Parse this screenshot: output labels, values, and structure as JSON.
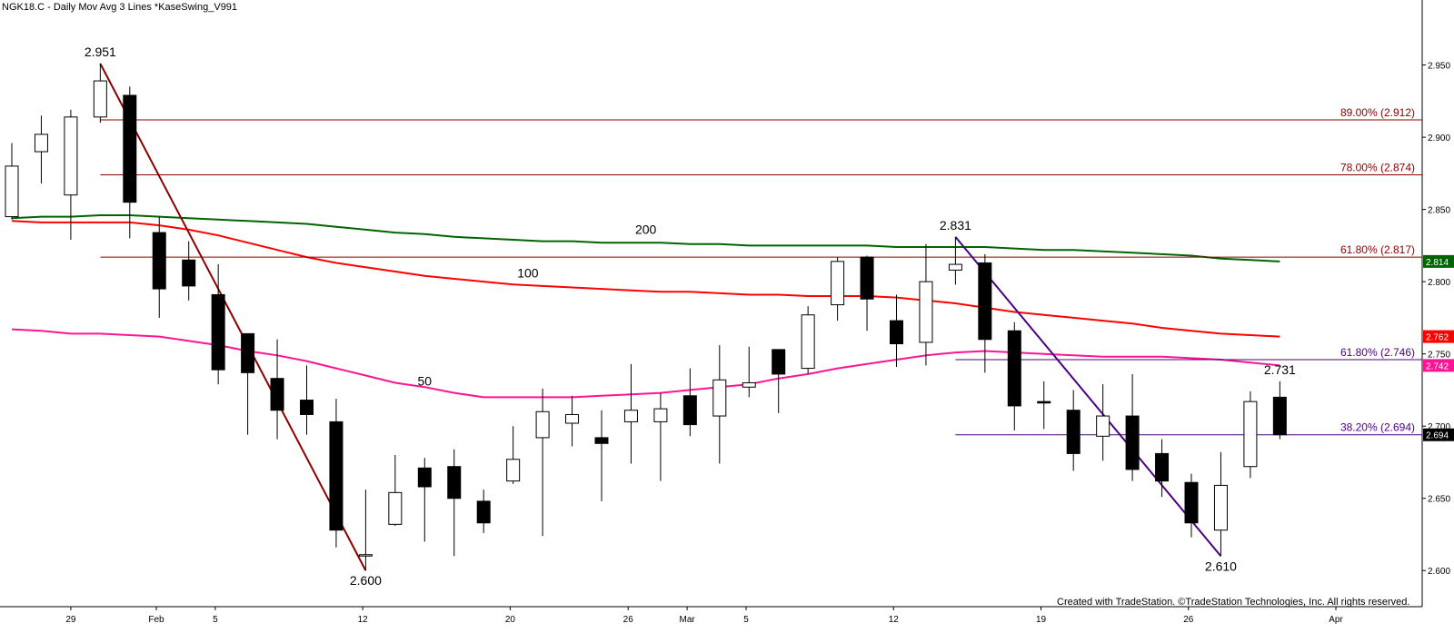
{
  "header": {
    "title": "NGK18.C - Daily  Mov Avg 3 Lines  *KaseSwing_V991"
  },
  "copyright": "Created with TradeStation. ©TradeStation Technologies, Inc. All rights reserved.",
  "colors": {
    "up_candle": "#ffffff",
    "down_candle": "#000000",
    "ma200": "#006400",
    "ma100": "#ff0000",
    "ma50": "#ff1493",
    "fib_upper": "#8b0000",
    "fib_lower": "#4b0082",
    "swing_down1": "#8b0000",
    "swing_down2": "#4b0082"
  },
  "chart_data": {
    "type": "candlestick",
    "x_tick_labels": [
      "29",
      "Feb",
      "5",
      "12",
      "20",
      "26",
      "Mar",
      "5",
      "12",
      "19",
      "26",
      "Apr"
    ],
    "y_ticks": [
      2.6,
      2.65,
      2.7,
      2.75,
      2.8,
      2.85,
      2.9,
      2.95
    ],
    "y_tick_labels": [
      "2.600",
      "2.650",
      "2.700",
      "2.750",
      "2.800",
      "2.850",
      "2.900",
      "2.950"
    ],
    "ylim": [
      2.575,
      2.995
    ],
    "candles": [
      {
        "date": "Jan 26",
        "open": 2.845,
        "high": 2.896,
        "low": 2.843,
        "close": 2.88
      },
      {
        "date": "Jan 29",
        "open": 2.89,
        "high": 2.915,
        "low": 2.868,
        "close": 2.902
      },
      {
        "date": "Jan 30",
        "open": 2.86,
        "high": 2.919,
        "low": 2.829,
        "close": 2.914
      },
      {
        "date": "Jan 31",
        "open": 2.914,
        "high": 2.951,
        "low": 2.91,
        "close": 2.939
      },
      {
        "date": "Feb 1",
        "open": 2.929,
        "high": 2.935,
        "low": 2.83,
        "close": 2.855
      },
      {
        "date": "Feb 2",
        "open": 2.834,
        "high": 2.845,
        "low": 2.775,
        "close": 2.795
      },
      {
        "date": "Feb 5",
        "open": 2.815,
        "high": 2.828,
        "low": 2.787,
        "close": 2.797
      },
      {
        "date": "Feb 6",
        "open": 2.791,
        "high": 2.812,
        "low": 2.729,
        "close": 2.739
      },
      {
        "date": "Feb 7",
        "open": 2.764,
        "high": 2.76,
        "low": 2.694,
        "close": 2.737
      },
      {
        "date": "Feb 8",
        "open": 2.733,
        "high": 2.76,
        "low": 2.691,
        "close": 2.711
      },
      {
        "date": "Feb 9",
        "open": 2.718,
        "high": 2.742,
        "low": 2.694,
        "close": 2.708
      },
      {
        "date": "Feb 12",
        "open": 2.703,
        "high": 2.719,
        "low": 2.616,
        "close": 2.628
      },
      {
        "date": "Feb 13",
        "open": 2.611,
        "high": 2.656,
        "low": 2.6,
        "close": 2.611
      },
      {
        "date": "Feb 14",
        "open": 2.632,
        "high": 2.68,
        "low": 2.631,
        "close": 2.654
      },
      {
        "date": "Feb 15",
        "open": 2.671,
        "high": 2.678,
        "low": 2.62,
        "close": 2.658
      },
      {
        "date": "Feb 16",
        "open": 2.672,
        "high": 2.684,
        "low": 2.61,
        "close": 2.65
      },
      {
        "date": "Feb 20",
        "open": 2.648,
        "high": 2.656,
        "low": 2.626,
        "close": 2.633
      },
      {
        "date": "Feb 21",
        "open": 2.662,
        "high": 2.7,
        "low": 2.66,
        "close": 2.677
      },
      {
        "date": "Feb 22",
        "open": 2.692,
        "high": 2.726,
        "low": 2.624,
        "close": 2.71
      },
      {
        "date": "Feb 23",
        "open": 2.702,
        "high": 2.721,
        "low": 2.686,
        "close": 2.708
      },
      {
        "date": "Feb 26",
        "open": 2.692,
        "high": 2.711,
        "low": 2.648,
        "close": 2.688
      },
      {
        "date": "Feb 27",
        "open": 2.703,
        "high": 2.743,
        "low": 2.674,
        "close": 2.711
      },
      {
        "date": "Feb 28",
        "open": 2.703,
        "high": 2.723,
        "low": 2.662,
        "close": 2.712
      },
      {
        "date": "Mar 1",
        "open": 2.721,
        "high": 2.74,
        "low": 2.693,
        "close": 2.701
      },
      {
        "date": "Mar 2",
        "open": 2.707,
        "high": 2.756,
        "low": 2.674,
        "close": 2.732
      },
      {
        "date": "Mar 5",
        "open": 2.727,
        "high": 2.755,
        "low": 2.72,
        "close": 2.73
      },
      {
        "date": "Mar 6",
        "open": 2.753,
        "high": 2.753,
        "low": 2.709,
        "close": 2.736
      },
      {
        "date": "Mar 7",
        "open": 2.74,
        "high": 2.783,
        "low": 2.736,
        "close": 2.777
      },
      {
        "date": "Mar 8",
        "open": 2.784,
        "high": 2.817,
        "low": 2.773,
        "close": 2.814
      },
      {
        "date": "Mar 9",
        "open": 2.817,
        "high": 2.818,
        "low": 2.766,
        "close": 2.788
      },
      {
        "date": "Mar 12",
        "open": 2.773,
        "high": 2.791,
        "low": 2.741,
        "close": 2.757
      },
      {
        "date": "Mar 13",
        "open": 2.758,
        "high": 2.826,
        "low": 2.742,
        "close": 2.8
      },
      {
        "date": "Mar 14",
        "open": 2.808,
        "high": 2.831,
        "low": 2.798,
        "close": 2.812
      },
      {
        "date": "Mar 15",
        "open": 2.813,
        "high": 2.819,
        "low": 2.737,
        "close": 2.76
      },
      {
        "date": "Mar 16",
        "open": 2.766,
        "high": 2.772,
        "low": 2.697,
        "close": 2.714
      },
      {
        "date": "Mar 19",
        "open": 2.717,
        "high": 2.731,
        "low": 2.698,
        "close": 2.716
      },
      {
        "date": "Mar 20",
        "open": 2.711,
        "high": 2.725,
        "low": 2.669,
        "close": 2.681
      },
      {
        "date": "Mar 21",
        "open": 2.693,
        "high": 2.729,
        "low": 2.676,
        "close": 2.707
      },
      {
        "date": "Mar 22",
        "open": 2.707,
        "high": 2.736,
        "low": 2.662,
        "close": 2.67
      },
      {
        "date": "Mar 23",
        "open": 2.681,
        "high": 2.691,
        "low": 2.651,
        "close": 2.662
      },
      {
        "date": "Mar 26",
        "open": 2.661,
        "high": 2.667,
        "low": 2.623,
        "close": 2.633
      },
      {
        "date": "Mar 27",
        "open": 2.628,
        "high": 2.682,
        "low": 2.61,
        "close": 2.659
      },
      {
        "date": "Mar 28",
        "open": 2.672,
        "high": 2.724,
        "low": 2.664,
        "close": 2.717
      },
      {
        "date": "Mar 29",
        "open": 2.72,
        "high": 2.731,
        "low": 2.691,
        "close": 2.694
      }
    ],
    "moving_averages": [
      {
        "name": "200",
        "color": "#006400",
        "last_value": "2.814",
        "values": [
          2.844,
          2.845,
          2.845,
          2.846,
          2.846,
          2.845,
          2.844,
          2.843,
          2.842,
          2.841,
          2.84,
          2.838,
          2.836,
          2.834,
          2.833,
          2.831,
          2.83,
          2.829,
          2.828,
          2.828,
          2.827,
          2.827,
          2.827,
          2.826,
          2.826,
          2.825,
          2.825,
          2.825,
          2.825,
          2.825,
          2.824,
          2.824,
          2.824,
          2.824,
          2.823,
          2.822,
          2.822,
          2.821,
          2.82,
          2.819,
          2.818,
          2.816,
          2.815,
          2.814
        ]
      },
      {
        "name": "100",
        "color": "#ff0000",
        "last_value": "2.762",
        "values": [
          2.842,
          2.841,
          2.841,
          2.841,
          2.841,
          2.839,
          2.836,
          2.832,
          2.827,
          2.822,
          2.817,
          2.813,
          2.81,
          2.807,
          2.804,
          2.802,
          2.8,
          2.798,
          2.797,
          2.796,
          2.795,
          2.794,
          2.793,
          2.793,
          2.792,
          2.791,
          2.791,
          2.79,
          2.79,
          2.79,
          2.789,
          2.787,
          2.785,
          2.782,
          2.779,
          2.777,
          2.775,
          2.773,
          2.771,
          2.768,
          2.766,
          2.764,
          2.763,
          2.762
        ]
      },
      {
        "name": "50",
        "color": "#ff1493",
        "last_value": "2.742",
        "values": [
          2.767,
          2.766,
          2.764,
          2.764,
          2.763,
          2.762,
          2.759,
          2.756,
          2.752,
          2.749,
          2.745,
          2.74,
          2.735,
          2.73,
          2.727,
          2.723,
          2.72,
          2.72,
          2.72,
          2.72,
          2.721,
          2.722,
          2.723,
          2.725,
          2.727,
          2.729,
          2.733,
          2.736,
          2.74,
          2.743,
          2.746,
          2.749,
          2.751,
          2.752,
          2.751,
          2.75,
          2.749,
          2.748,
          2.748,
          2.748,
          2.747,
          2.746,
          2.744,
          2.742
        ]
      }
    ],
    "fib_levels": [
      {
        "label": "89.00% (2.912)",
        "value": 2.912,
        "color": "#8b0000",
        "start_index": 3
      },
      {
        "label": "78.00% (2.874)",
        "value": 2.874,
        "color": "#8b0000",
        "start_index": 3
      },
      {
        "label": "61.80% (2.817)",
        "value": 2.817,
        "color": "#8b0000",
        "start_index": 3
      },
      {
        "label": "61.80% (2.746)",
        "value": 2.746,
        "color": "#4b0082",
        "start_index": 32
      },
      {
        "label": "38.20% (2.694)",
        "value": 2.694,
        "color": "#4b0082",
        "start_index": 32
      }
    ],
    "swing_lines": [
      {
        "from_index": 3,
        "from_price": 2.951,
        "to_index": 12,
        "to_price": 2.6,
        "color": "#8b0000"
      },
      {
        "from_index": 32,
        "from_price": 2.831,
        "to_index": 41,
        "to_price": 2.61,
        "color": "#4b0082"
      }
    ],
    "annotations": [
      {
        "text": "2.951",
        "index": 3,
        "price": 2.951,
        "pos": "above"
      },
      {
        "text": "2.600",
        "index": 12,
        "price": 2.6,
        "pos": "below"
      },
      {
        "text": "2.831",
        "index": 32,
        "price": 2.831,
        "pos": "above"
      },
      {
        "text": "2.610",
        "index": 41,
        "price": 2.61,
        "pos": "below"
      },
      {
        "text": "2.731",
        "index": 43,
        "price": 2.731,
        "pos": "above"
      },
      {
        "text": "200",
        "index": 21.5,
        "price": 2.828,
        "pos": "above"
      },
      {
        "text": "100",
        "index": 17.5,
        "price": 2.798,
        "pos": "above"
      },
      {
        "text": "50",
        "index": 14,
        "price": 2.723,
        "pos": "above"
      }
    ],
    "price_flags": [
      {
        "text": "2.814",
        "value": 2.814,
        "bg": "#006400",
        "fg": "#ffffff"
      },
      {
        "text": "2.762",
        "value": 2.762,
        "bg": "#ff0000",
        "fg": "#ffffff"
      },
      {
        "text": "2.742",
        "value": 2.742,
        "bg": "#ff1493",
        "fg": "#ffffff"
      },
      {
        "text": "2.694",
        "value": 2.694,
        "bg": "#000000",
        "fg": "#ffffff"
      }
    ]
  }
}
